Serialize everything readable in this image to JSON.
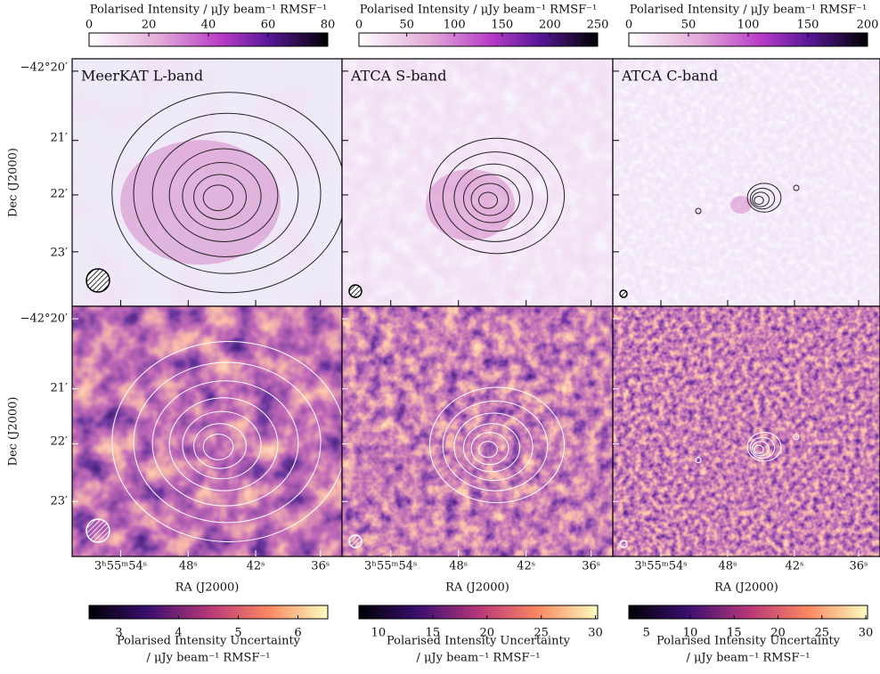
{
  "colorbars_top": [
    {
      "label": "Polarised Intensity / μJy beam⁻¹ RMSF⁻¹",
      "lim": [
        0,
        80
      ],
      "ticks": [
        0,
        20,
        40,
        60,
        80
      ]
    },
    {
      "label": "Polarised Intensity / μJy beam⁻¹ RMSF⁻¹",
      "lim": [
        0,
        250
      ],
      "ticks": [
        0,
        50,
        100,
        150,
        200,
        250
      ]
    },
    {
      "label": "Polarised Intensity / μJy beam⁻¹ RMSF⁻¹",
      "lim": [
        0,
        200
      ],
      "ticks": [
        0,
        50,
        100,
        150,
        200
      ]
    }
  ],
  "panels": [
    {
      "label": "MeerKAT L-band"
    },
    {
      "label": "ATCA S-band"
    },
    {
      "label": "ATCA C-band"
    }
  ],
  "dec_axis": {
    "label": "Dec (J2000)",
    "ticks": [
      "−42°20′",
      "21′",
      "22′",
      "23′"
    ]
  },
  "ra_axis": {
    "label": "RA (J2000)",
    "ticks": [
      "3ʰ55ᵐ54ˢ",
      "48ˢ",
      "42ˢ",
      "36ˢ"
    ]
  },
  "colorbars_bottom": [
    {
      "label_lines": [
        "Polarised Intensity Uncertainty",
        "/ μJy beam⁻¹ RMSF⁻¹"
      ],
      "lim": [
        2.5,
        6.5
      ],
      "ticks": [
        3,
        4,
        5,
        6
      ]
    },
    {
      "label_lines": [
        "Polarised Intensity Uncertainty",
        "/ μJy beam⁻¹ RMSF⁻¹"
      ],
      "lim": [
        8.2,
        30.2
      ],
      "ticks": [
        10,
        15,
        20,
        25,
        30
      ]
    },
    {
      "label_lines": [
        "Polarised Intensity Uncertainty",
        "/ μJy beam⁻¹ RMSF⁻¹"
      ],
      "lim": [
        3,
        30.2
      ],
      "ticks": [
        5,
        10,
        15,
        20,
        25,
        30
      ]
    }
  ]
}
